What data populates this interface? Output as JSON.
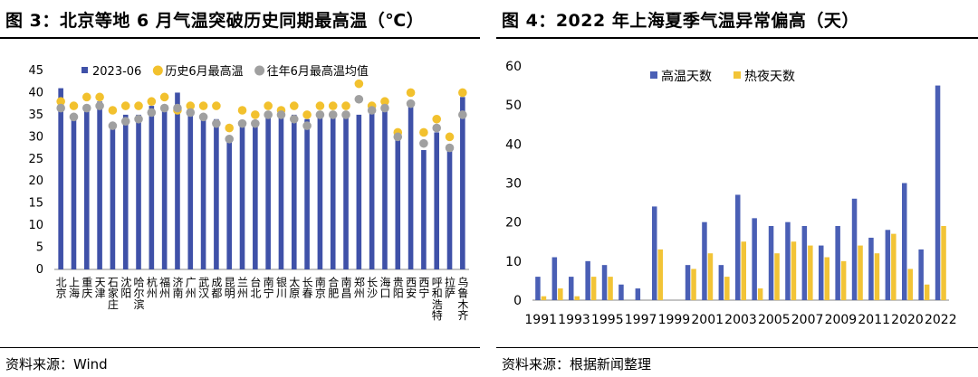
{
  "figures": [
    {
      "title": "图 3：北京等地 6 月气温突破历史同期最高温（℃）",
      "source": "资料来源：Wind"
    },
    {
      "title": "图 4：2022 年上海夏季气温异常偏高（天）",
      "source": "资料来源：根据新闻整理"
    }
  ],
  "chart_data": [
    {
      "type": "bar",
      "categories": [
        "北京",
        "上海",
        "重庆",
        "天津",
        "石家庄",
        "沈阳",
        "哈尔滨",
        "杭州",
        "福州",
        "济南",
        "广州",
        "武汉",
        "成都",
        "昆明",
        "兰州",
        "台北",
        "南宁",
        "银川",
        "太原",
        "长春",
        "南京",
        "合肥",
        "南昌",
        "郑州",
        "长沙",
        "海口",
        "贵阳",
        "西安",
        "西宁",
        "呼和浩特",
        "拉萨",
        "乌鲁木齐"
      ],
      "series": [
        {
          "name": "2023-06",
          "mark": "bar",
          "color": "#3F51A8",
          "values": [
            41,
            35,
            37,
            38,
            33,
            35,
            35,
            37,
            37,
            40,
            35,
            35,
            34,
            30,
            33,
            33,
            35,
            35,
            35,
            34,
            35,
            35,
            35,
            35,
            36,
            37,
            30,
            37,
            27,
            31,
            28,
            39
          ]
        },
        {
          "name": "历史6月最高温",
          "mark": "dot",
          "color": "#F2C12E",
          "values": [
            38,
            37,
            39,
            39,
            36,
            37,
            37,
            38,
            39,
            36,
            37,
            37,
            37,
            32,
            36,
            35,
            37,
            36,
            37,
            35,
            37,
            37,
            37,
            42,
            37,
            38,
            31,
            40,
            31,
            34,
            30,
            40
          ]
        },
        {
          "name": "往年6月最高温均值",
          "mark": "dot",
          "color": "#A0A0A0",
          "values": [
            36.5,
            34.5,
            36.5,
            37,
            32.5,
            33.5,
            34,
            35.5,
            36.5,
            36.5,
            35.5,
            34.5,
            33,
            29.5,
            33,
            33,
            35,
            35,
            34,
            32.5,
            35,
            35,
            35,
            38.5,
            36,
            36.5,
            30,
            37.5,
            28.5,
            32,
            27.5,
            35
          ]
        }
      ],
      "ylim": [
        0,
        45
      ],
      "yticks": [
        0,
        5,
        10,
        15,
        20,
        25,
        30,
        35,
        40,
        45
      ],
      "legend_position": "top"
    },
    {
      "type": "bar",
      "categories": [
        "1991",
        "1992",
        "1993",
        "1994",
        "1995",
        "1996",
        "1997",
        "1998",
        "1999",
        "2000",
        "2001",
        "2002",
        "2003",
        "2004",
        "2005",
        "2006",
        "2007",
        "2008",
        "2009",
        "2010",
        "2011",
        "2012",
        "2020",
        "2021",
        "2022"
      ],
      "tick_labels": [
        "1991",
        "1993",
        "1995",
        "1997",
        "1999",
        "2001",
        "2003",
        "2005",
        "2007",
        "2009",
        "2011",
        "2020",
        "2022"
      ],
      "series": [
        {
          "name": "高温天数",
          "color": "#4A5FB5",
          "values": [
            6,
            11,
            6,
            10,
            9,
            4,
            3,
            24,
            0,
            9,
            20,
            9,
            27,
            21,
            19,
            20,
            19,
            14,
            19,
            26,
            16,
            18,
            30,
            13,
            55
          ]
        },
        {
          "name": "热夜天数",
          "color": "#F2C437",
          "values": [
            1,
            3,
            1,
            6,
            6,
            0,
            0,
            13,
            0,
            8,
            12,
            6,
            15,
            3,
            12,
            15,
            14,
            11,
            10,
            14,
            12,
            17,
            8,
            4,
            19
          ]
        }
      ],
      "ylim": [
        0,
        60
      ],
      "yticks": [
        0,
        10,
        20,
        30,
        40,
        50,
        60
      ],
      "legend_position": "top-left"
    }
  ]
}
